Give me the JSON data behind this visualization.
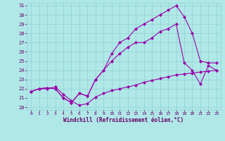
{
  "xlabel": "Windchill (Refroidissement éolien,°C)",
  "bg_color": "#b0e8e8",
  "line_color": "#9900aa",
  "grid_color": "#90d0d0",
  "xlim": [
    -0.5,
    23.5
  ],
  "ylim": [
    19.7,
    31.3
  ],
  "xticks": [
    0,
    1,
    2,
    3,
    4,
    5,
    6,
    7,
    8,
    9,
    10,
    11,
    12,
    13,
    14,
    15,
    16,
    17,
    18,
    19,
    20,
    21,
    22,
    23
  ],
  "yticks": [
    20,
    21,
    22,
    23,
    24,
    25,
    26,
    27,
    28,
    29,
    30,
    31
  ],
  "line1_x": [
    0,
    1,
    2,
    3,
    4,
    5,
    6,
    7,
    8,
    9,
    10,
    11,
    12,
    13,
    14,
    15,
    16,
    17,
    18,
    19,
    20,
    21,
    22,
    23
  ],
  "line1_y": [
    21.7,
    22.0,
    22.0,
    22.2,
    21.4,
    20.7,
    20.2,
    20.4,
    21.1,
    21.5,
    21.8,
    22.0,
    22.2,
    22.4,
    22.7,
    22.9,
    23.1,
    23.3,
    23.5,
    23.6,
    23.7,
    23.8,
    23.9,
    24.0
  ],
  "line2_x": [
    0,
    1,
    2,
    3,
    4,
    5,
    6,
    7,
    8,
    9,
    10,
    11,
    12,
    13,
    14,
    15,
    16,
    17,
    18,
    19,
    20,
    21,
    22,
    23
  ],
  "line2_y": [
    21.7,
    22.0,
    22.1,
    22.0,
    21.0,
    20.5,
    21.5,
    21.2,
    23.0,
    24.0,
    25.0,
    25.8,
    26.5,
    27.0,
    27.0,
    27.5,
    28.2,
    28.5,
    29.0,
    24.8,
    24.0,
    22.5,
    24.5,
    24.0
  ],
  "line3_x": [
    0,
    1,
    2,
    3,
    4,
    5,
    6,
    7,
    8,
    9,
    10,
    11,
    12,
    13,
    14,
    15,
    16,
    17,
    18,
    19,
    20,
    21,
    22,
    23
  ],
  "line3_y": [
    21.7,
    22.0,
    22.1,
    22.0,
    21.0,
    20.5,
    21.5,
    21.2,
    23.0,
    24.0,
    25.8,
    27.0,
    27.5,
    28.5,
    29.0,
    29.5,
    30.0,
    30.5,
    31.0,
    29.8,
    28.0,
    25.0,
    24.8,
    24.8
  ]
}
